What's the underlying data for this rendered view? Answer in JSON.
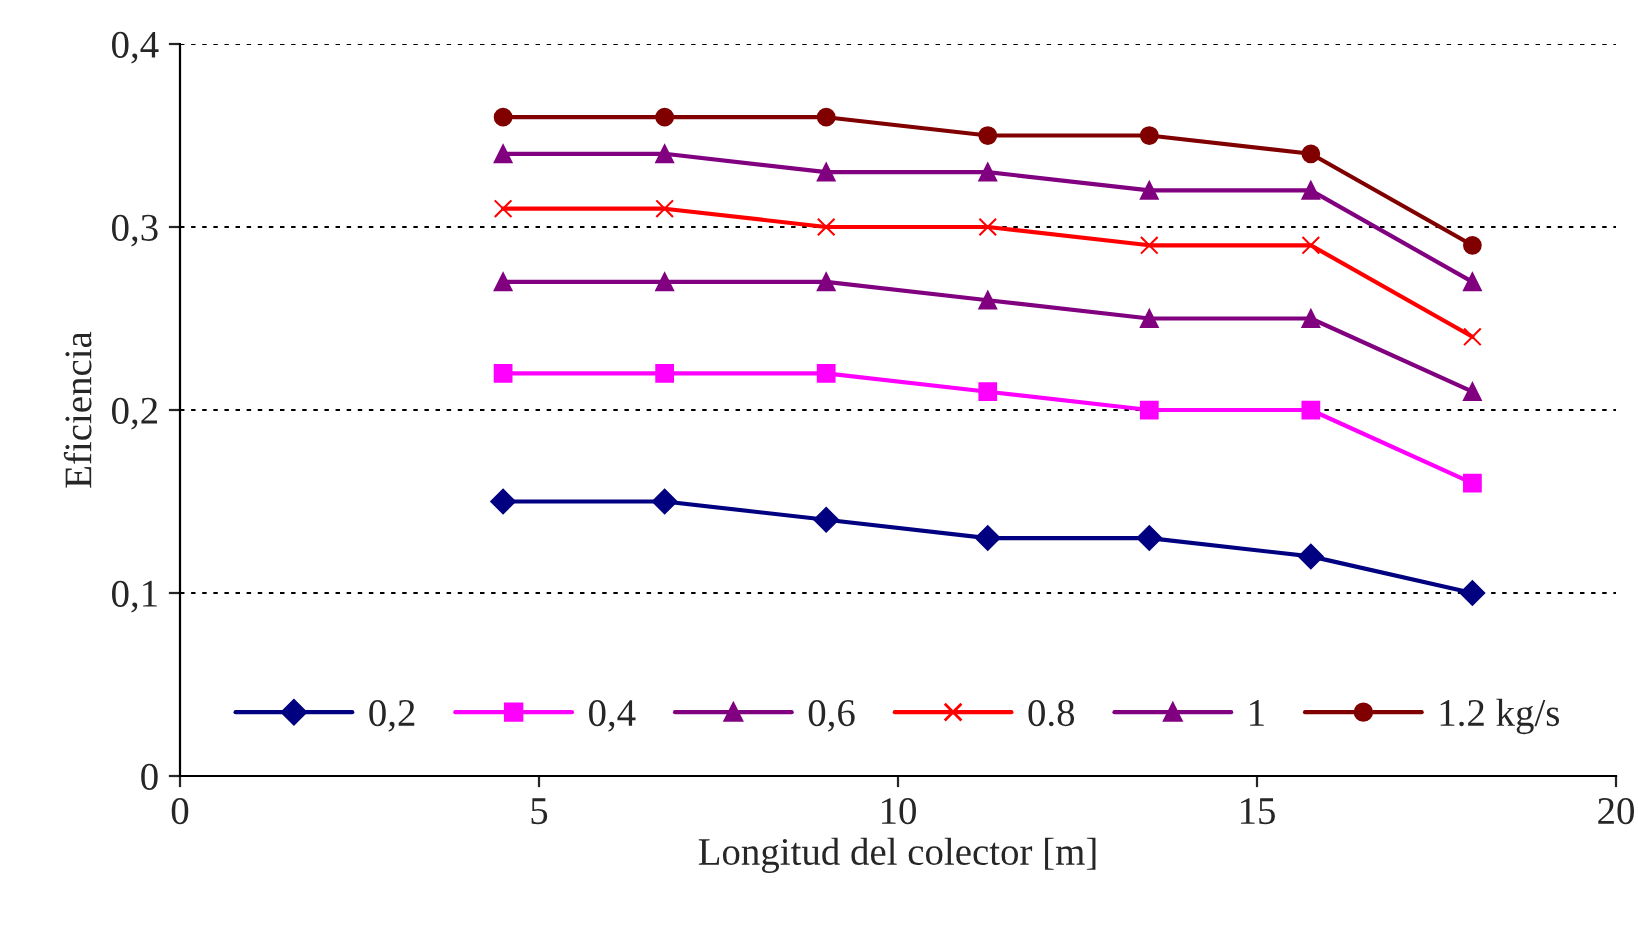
{
  "chart_data": {
    "type": "line",
    "xlabel": "Longitud del colector [m]",
    "ylabel": "Eficiencia",
    "x": [
      4.5,
      6.75,
      9,
      11.25,
      13.5,
      15.75,
      18
    ],
    "series": [
      {
        "name": "0,2",
        "color": "#000080",
        "marker": "diamond",
        "values": [
          0.15,
          0.15,
          0.14,
          0.13,
          0.13,
          0.12,
          0.1
        ]
      },
      {
        "name": "0,4",
        "color": "#ff00ff",
        "marker": "square",
        "values": [
          0.22,
          0.22,
          0.22,
          0.21,
          0.2,
          0.2,
          0.16
        ]
      },
      {
        "name": "0,6",
        "color": "#800080",
        "marker": "triangle",
        "values": [
          0.27,
          0.27,
          0.27,
          0.26,
          0.25,
          0.25,
          0.21
        ]
      },
      {
        "name": "0.8",
        "color": "#ff0000",
        "marker": "cross",
        "values": [
          0.31,
          0.31,
          0.3,
          0.3,
          0.29,
          0.29,
          0.24
        ]
      },
      {
        "name": "1",
        "color": "#800080",
        "marker": "triangle",
        "values": [
          0.34,
          0.34,
          0.33,
          0.33,
          0.32,
          0.32,
          0.27
        ]
      },
      {
        "name": "1.2 kg/s",
        "color": "#800000",
        "marker": "circle",
        "values": [
          0.36,
          0.36,
          0.36,
          0.35,
          0.35,
          0.34,
          0.29
        ]
      }
    ],
    "xlim": [
      0,
      20
    ],
    "xticks": [
      0,
      5,
      10,
      15,
      20
    ],
    "ylim": [
      0,
      0.4
    ],
    "yticks": [
      0,
      {
        "value": 0.1,
        "label": "0,1"
      },
      {
        "value": 0.2,
        "label": "0,2"
      },
      {
        "value": 0.3,
        "label": "0,3"
      },
      {
        "value": 0.4,
        "label": "0,4"
      }
    ],
    "grid": "y",
    "legend": "bottom",
    "line_style": "solid"
  }
}
